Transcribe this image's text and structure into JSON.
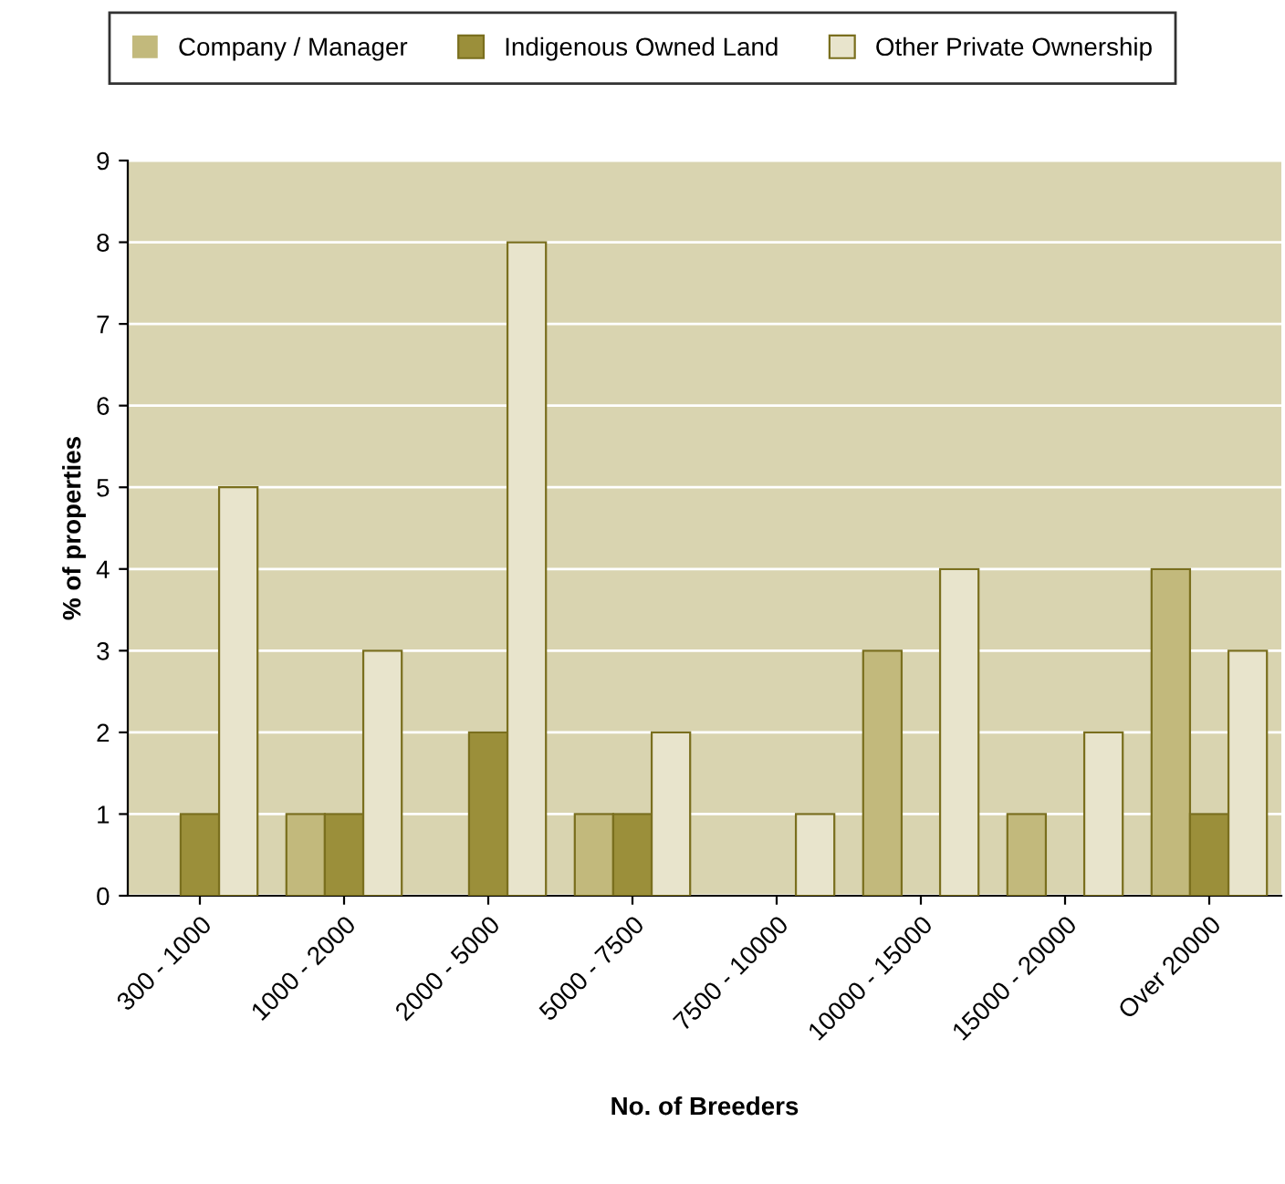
{
  "chart_data": {
    "type": "bar",
    "xlabel": "No. of Breeders",
    "ylabel": "% of properties",
    "categories": [
      "300 - 1000",
      "1000 - 2000",
      "2000 - 5000",
      "5000 - 7500",
      "7500 - 10000",
      "10000 - 15000",
      "15000 - 20000",
      "Over 20000"
    ],
    "series": [
      {
        "name": "Company / Manager",
        "color": "#c2b97c",
        "values": [
          0,
          1,
          0,
          1,
          0,
          3,
          1,
          4
        ]
      },
      {
        "name": "Indigenous Owned Land",
        "color": "#9b8f3a",
        "values": [
          1,
          1,
          2,
          1,
          0,
          0,
          0,
          1
        ]
      },
      {
        "name": "Other Private Ownership",
        "color": "#e8e4cc",
        "values": [
          5,
          3,
          8,
          2,
          1,
          4,
          2,
          3
        ]
      }
    ],
    "ylim": [
      0,
      9
    ],
    "yticks": [
      0,
      1,
      2,
      3,
      4,
      5,
      6,
      7,
      8,
      9
    ],
    "grid": "y",
    "legend": "top"
  }
}
